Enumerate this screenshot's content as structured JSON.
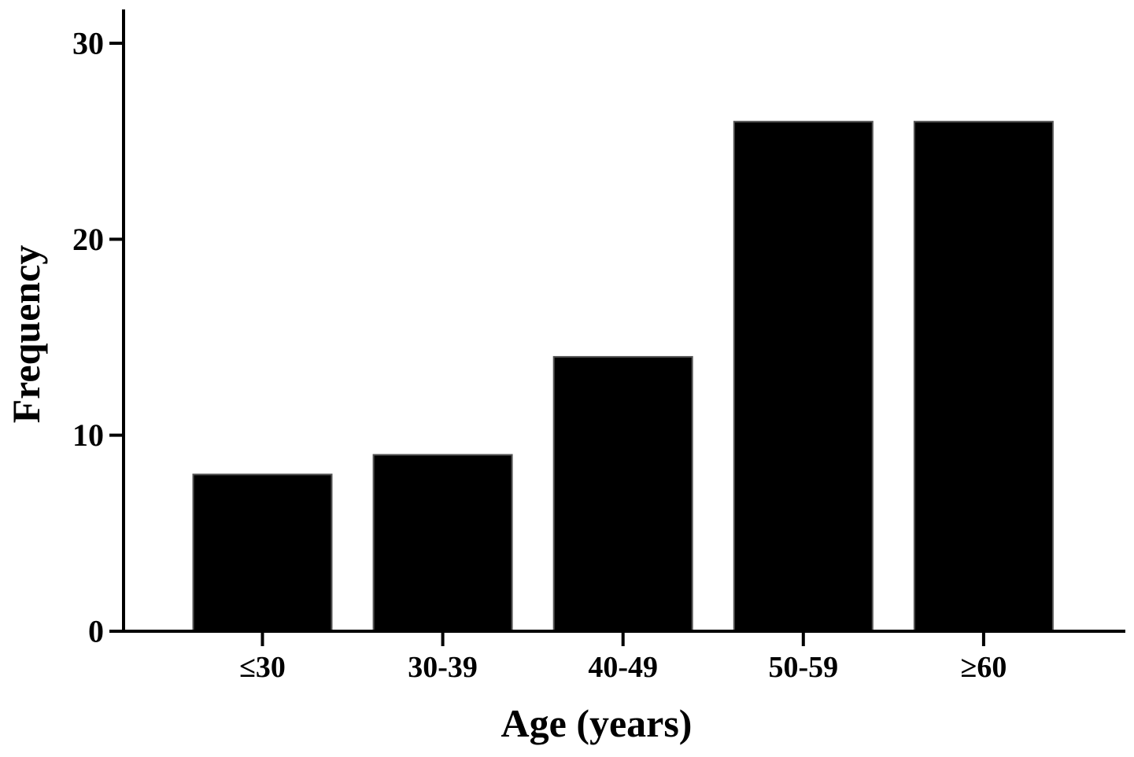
{
  "figure": {
    "background": "#ffffff",
    "axis_color": "#000000",
    "text_color": "#000000"
  },
  "chart_data": {
    "type": "bar",
    "categories": [
      "≤30",
      "30-39",
      "40-49",
      "50-59",
      "≥60"
    ],
    "values": [
      8,
      9,
      14,
      26,
      26
    ],
    "xlabel": "Age (years)",
    "ylabel": "Frequency",
    "yticks": [
      0,
      10,
      20,
      30
    ],
    "ylim": [
      0,
      31.7
    ],
    "grid": false,
    "bar_color": "#000000",
    "bar_border": "#555555",
    "background": "#ffffff"
  }
}
